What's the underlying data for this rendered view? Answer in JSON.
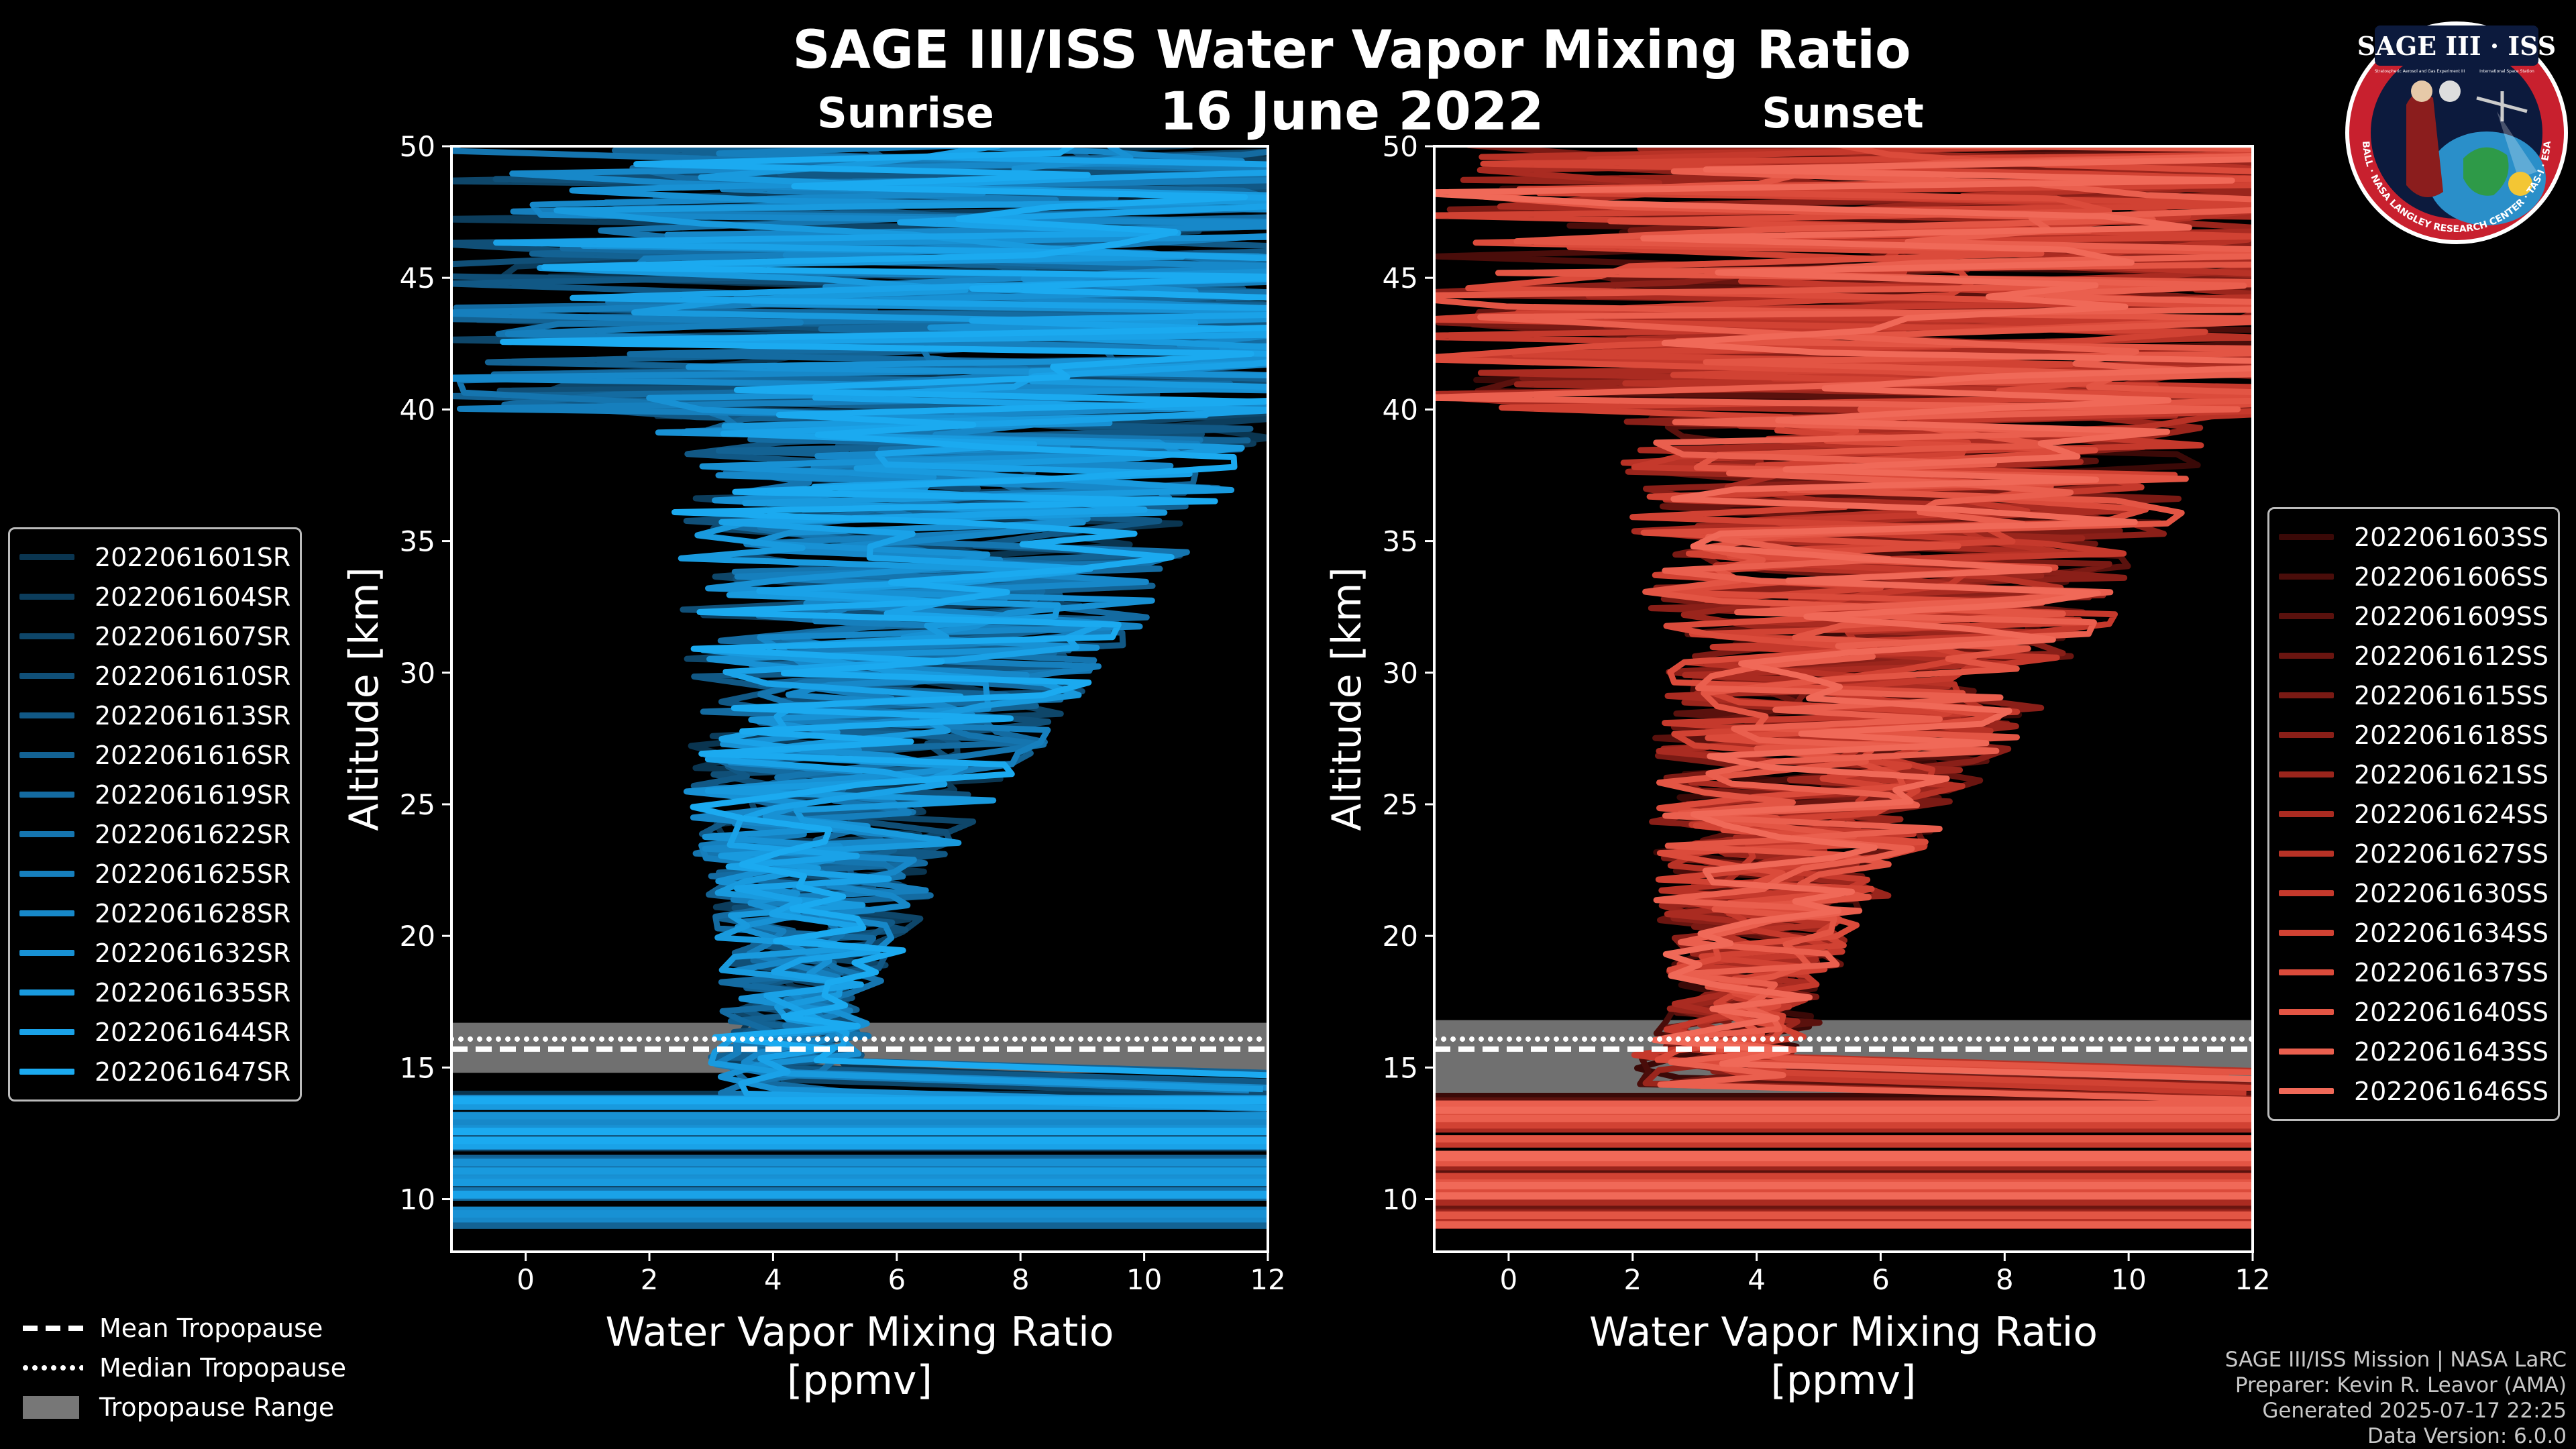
{
  "header": {
    "title": "SAGE III/ISS Water Vapor Mixing Ratio",
    "date": "16 June 2022"
  },
  "chart_data": [
    {
      "type": "line",
      "panel": "Sunrise",
      "title": "Sunrise",
      "xlabel": "Water Vapor Mixing Ratio",
      "xlabel_unit": "[ppmv]",
      "ylabel": "Altitude [km]",
      "xlim": [
        -1.2,
        12
      ],
      "ylim": [
        8,
        50
      ],
      "xticks": [
        0,
        2,
        4,
        6,
        8,
        10,
        12
      ],
      "yticks": [
        10,
        15,
        20,
        25,
        30,
        35,
        40,
        45,
        50
      ],
      "tropopause": {
        "mean_km": 15.7,
        "median_km": 15.8,
        "range_km": [
          14.8,
          16.7
        ]
      },
      "series_names": [
        "2022061601SR",
        "2022061604SR",
        "2022061607SR",
        "2022061610SR",
        "2022061613SR",
        "2022061616SR",
        "2022061619SR",
        "2022061622SR",
        "2022061625SR",
        "2022061628SR",
        "2022061632SR",
        "2022061635SR",
        "2022061644SR",
        "2022061647SR"
      ],
      "series_colors": [
        "#0a3550",
        "#0c3d5c",
        "#0e4669",
        "#104f77",
        "#115885",
        "#136293",
        "#146ba1",
        "#1575af",
        "#167fbd",
        "#1788c9",
        "#1891d4",
        "#199ade",
        "#1aa2e8",
        "#1baaf0"
      ],
      "median_profile": [
        [
          15.5,
          4.2
        ],
        [
          16,
          4.3
        ],
        [
          17,
          4.3
        ],
        [
          18,
          4.4
        ],
        [
          19,
          4.5
        ],
        [
          20,
          4.7
        ],
        [
          21,
          4.8
        ],
        [
          22,
          4.9
        ],
        [
          23,
          4.9
        ],
        [
          24,
          5.0
        ],
        [
          25,
          5.1
        ],
        [
          26,
          5.3
        ],
        [
          27,
          5.5
        ],
        [
          28,
          5.7
        ],
        [
          29,
          5.9
        ],
        [
          30,
          6.0
        ],
        [
          31,
          6.1
        ],
        [
          32,
          6.3
        ],
        [
          33,
          6.4
        ],
        [
          34,
          6.6
        ],
        [
          35,
          6.7
        ],
        [
          36,
          6.8
        ],
        [
          37,
          6.9
        ],
        [
          38,
          7.0
        ],
        [
          39,
          7.1
        ],
        [
          40,
          7.2
        ]
      ]
    },
    {
      "type": "line",
      "panel": "Sunset",
      "title": "Sunset",
      "xlabel": "Water Vapor Mixing Ratio",
      "xlabel_unit": "[ppmv]",
      "ylabel": "Altitude [km]",
      "xlim": [
        -1.2,
        12
      ],
      "ylim": [
        8,
        50
      ],
      "xticks": [
        0,
        2,
        4,
        6,
        8,
        10,
        12
      ],
      "yticks": [
        10,
        15,
        20,
        25,
        30,
        35,
        40,
        45,
        50
      ],
      "tropopause": {
        "mean_km": 15.7,
        "median_km": 15.8,
        "range_km": [
          13.7,
          16.8
        ]
      },
      "series_names": [
        "2022061603SS",
        "2022061606SS",
        "2022061609SS",
        "2022061612SS",
        "2022061615SS",
        "2022061618SS",
        "2022061621SS",
        "2022061624SS",
        "2022061627SS",
        "2022061630SS",
        "2022061634SS",
        "2022061637SS",
        "2022061640SS",
        "2022061643SS",
        "2022061646SS"
      ],
      "series_colors": [
        "#3a0907",
        "#4a0d0a",
        "#5a110d",
        "#6a1510",
        "#7a1a14",
        "#8a1f18",
        "#9a251c",
        "#aa2b21",
        "#b83226",
        "#c5392c",
        "#d14233",
        "#db4b3b",
        "#e35544",
        "#ea5f4e",
        "#f06958"
      ],
      "median_profile": [
        [
          15.5,
          3.3
        ],
        [
          16,
          3.6
        ],
        [
          17,
          3.8
        ],
        [
          18,
          3.9
        ],
        [
          19,
          4.0
        ],
        [
          20,
          4.1
        ],
        [
          21,
          4.2
        ],
        [
          22,
          4.3
        ],
        [
          23,
          4.4
        ],
        [
          24,
          4.6
        ],
        [
          25,
          4.8
        ],
        [
          26,
          5.0
        ],
        [
          27,
          5.2
        ],
        [
          28,
          5.4
        ],
        [
          29,
          5.6
        ],
        [
          30,
          5.8
        ],
        [
          31,
          5.9
        ],
        [
          32,
          6.0
        ],
        [
          33,
          6.1
        ],
        [
          34,
          6.2
        ],
        [
          35,
          6.3
        ],
        [
          36,
          6.4
        ],
        [
          37,
          6.5
        ],
        [
          38,
          6.6
        ],
        [
          39,
          6.7
        ],
        [
          40,
          6.8
        ],
        [
          44,
          7.0
        ]
      ]
    }
  ],
  "tropopause_legend": {
    "mean": "Mean Tropopause",
    "median": "Median Tropopause",
    "range": "Tropopause Range"
  },
  "logo": {
    "name": "SAGE III · ISS",
    "sub1": "Stratospheric Aerosol and Gas Experiment III",
    "sub2": "International Space Station",
    "ring": "BALL · NASA LANGLEY RESEARCH CENTER · TAS-I · ESA"
  },
  "footer": {
    "line1": "SAGE III/ISS Mission | NASA LaRC",
    "line2": "Preparer: Kevin R. Leavor (AMA)",
    "line3": "Generated 2025-07-17 22:25",
    "line4": "Data Version: 6.0.0"
  },
  "colors": {
    "background": "#000000",
    "sunrise": "#1aa2e8",
    "sunset": "#e8584a",
    "tropo_band": "#707070"
  }
}
